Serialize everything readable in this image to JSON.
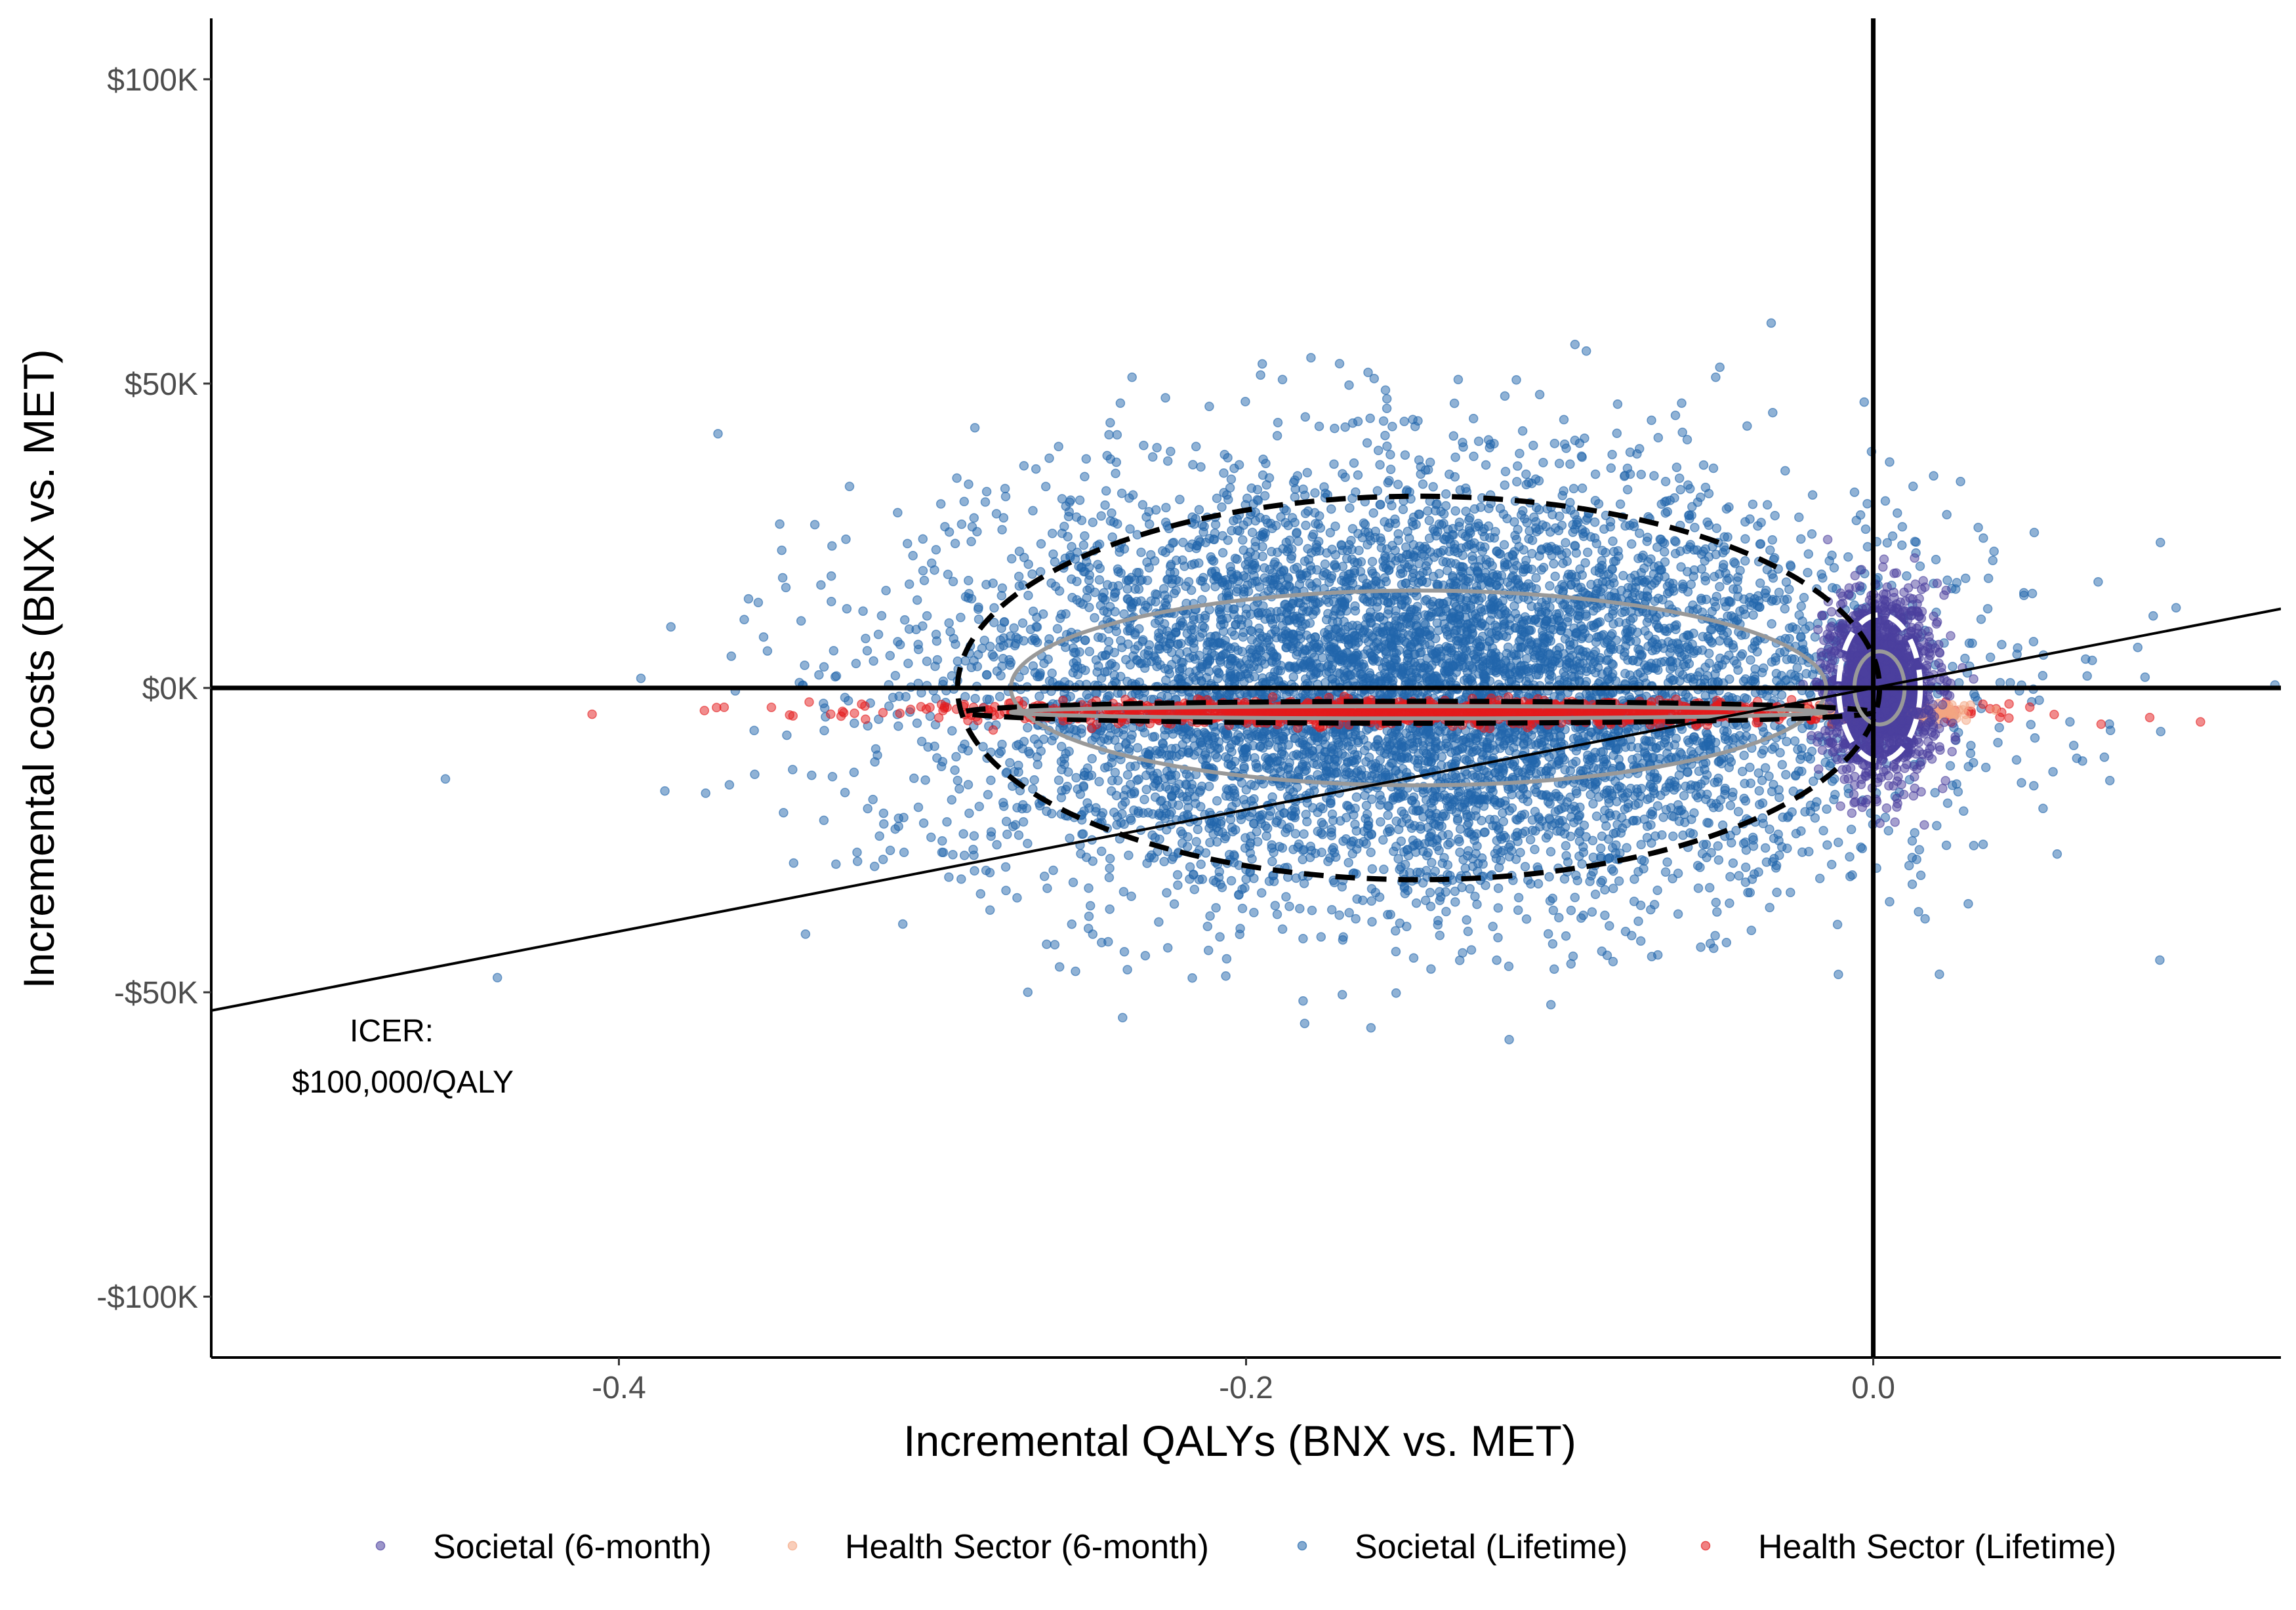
{
  "chart_data": {
    "type": "scatter",
    "title": "",
    "xlabel": "Incremental QALYs (BNX vs. MET)",
    "ylabel": "Incremental costs (BNX vs. MET)",
    "xlim": [
      -0.53,
      0.13
    ],
    "ylim": [
      -110000,
      110000
    ],
    "x_ticks": [
      -0.4,
      -0.2,
      0.0
    ],
    "x_tick_labels": [
      "-0.4",
      "-0.2",
      "0.0"
    ],
    "y_ticks": [
      100000,
      50000,
      0,
      -50000,
      -100000
    ],
    "y_tick_labels": [
      "$100K",
      "$50K",
      "$0K",
      "-$50K",
      "-$100K"
    ],
    "grid": false,
    "legend_position": "bottom",
    "series": [
      {
        "name": "Societal (6-month)",
        "color": "#4b3f9e",
        "n_points": 2000,
        "center": [
          0.002,
          0
        ],
        "sd": [
          0.008,
          7000
        ]
      },
      {
        "name": "Health Sector (6-month)",
        "color": "#f4a582",
        "n_points": 250,
        "center": [
          0.005,
          -4000
        ],
        "sd": [
          0.012,
          700
        ]
      },
      {
        "name": "Societal (Lifetime)",
        "color": "#2166ac",
        "n_points": 7000,
        "center": [
          -0.145,
          0
        ],
        "sd": [
          0.075,
          17000
        ]
      },
      {
        "name": "Health Sector (Lifetime)",
        "color": "#e31a1c",
        "n_points": 1500,
        "center": [
          -0.145,
          -4000
        ],
        "sd": [
          0.075,
          900
        ]
      }
    ],
    "confidence_ellipses": [
      {
        "series": "Societal (Lifetime)",
        "level": "95%",
        "center": [
          -0.145,
          0
        ],
        "radii": [
          0.147,
          31500
        ],
        "style": "dashed",
        "color": "#000000"
      },
      {
        "series": "Societal (Lifetime)",
        "level": "50%",
        "center": [
          -0.145,
          0
        ],
        "radii": [
          0.13,
          16000
        ],
        "style": "solid",
        "color": "#999999"
      },
      {
        "series": "Health Sector (Lifetime)",
        "level": "95%",
        "center": [
          -0.145,
          -4000
        ],
        "radii": [
          0.145,
          1800
        ],
        "style": "dashed",
        "color": "#000000"
      },
      {
        "series": "Health Sector (Lifetime)",
        "level": "50%",
        "center": [
          -0.145,
          -4000
        ],
        "radii": [
          0.13,
          1000
        ],
        "style": "solid",
        "color": "#999999"
      },
      {
        "series": "Societal (6-month)",
        "level": "95%",
        "center": [
          0.002,
          0
        ],
        "radii": [
          0.013,
          12000
        ],
        "style": "dashed",
        "color": "#ffffff"
      },
      {
        "series": "Societal (6-month)",
        "level": "50%",
        "center": [
          0.002,
          0
        ],
        "radii": [
          0.008,
          6000
        ],
        "style": "solid",
        "color": "#999999"
      }
    ],
    "wtp_line": {
      "slope_per_qaly": 100000,
      "color": "#000000"
    },
    "reference_lines": {
      "x": 0,
      "y": 0
    },
    "annotation": {
      "line1": "ICER:",
      "line2": "$100,000/QALY"
    }
  }
}
